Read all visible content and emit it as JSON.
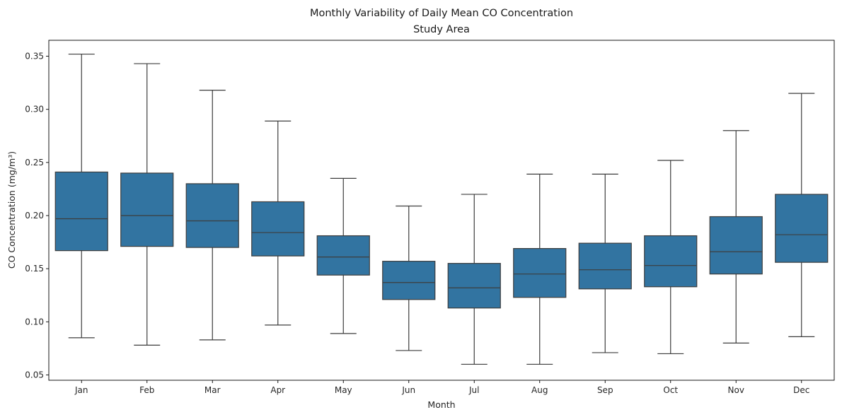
{
  "chart_data": {
    "type": "box",
    "title": "Monthly Variability of Daily Mean CO Concentration",
    "subtitle": "Study Area",
    "xlabel": "Month",
    "ylabel": "CO Concentration (mg/m³)",
    "ylim": [
      0.045,
      0.365
    ],
    "yticks": [
      0.05,
      0.1,
      0.15,
      0.2,
      0.25,
      0.3,
      0.35
    ],
    "ytick_labels": [
      "0.05",
      "0.10",
      "0.15",
      "0.20",
      "0.25",
      "0.30",
      "0.35"
    ],
    "grid": false,
    "box_color": "#3274a1",
    "line_color": "#3d3d3d",
    "categories": [
      "Jan",
      "Feb",
      "Mar",
      "Apr",
      "May",
      "Jun",
      "Jul",
      "Aug",
      "Sep",
      "Oct",
      "Nov",
      "Dec"
    ],
    "boxes": [
      {
        "min": 0.085,
        "q1": 0.167,
        "median": 0.197,
        "q3": 0.241,
        "max": 0.352
      },
      {
        "min": 0.078,
        "q1": 0.171,
        "median": 0.2,
        "q3": 0.24,
        "max": 0.343
      },
      {
        "min": 0.083,
        "q1": 0.17,
        "median": 0.195,
        "q3": 0.23,
        "max": 0.318
      },
      {
        "min": 0.097,
        "q1": 0.162,
        "median": 0.184,
        "q3": 0.213,
        "max": 0.289
      },
      {
        "min": 0.089,
        "q1": 0.144,
        "median": 0.161,
        "q3": 0.181,
        "max": 0.235
      },
      {
        "min": 0.073,
        "q1": 0.121,
        "median": 0.137,
        "q3": 0.157,
        "max": 0.209
      },
      {
        "min": 0.06,
        "q1": 0.113,
        "median": 0.132,
        "q3": 0.155,
        "max": 0.22
      },
      {
        "min": 0.06,
        "q1": 0.123,
        "median": 0.145,
        "q3": 0.169,
        "max": 0.239
      },
      {
        "min": 0.071,
        "q1": 0.131,
        "median": 0.149,
        "q3": 0.174,
        "max": 0.239
      },
      {
        "min": 0.07,
        "q1": 0.133,
        "median": 0.153,
        "q3": 0.181,
        "max": 0.252
      },
      {
        "min": 0.08,
        "q1": 0.145,
        "median": 0.166,
        "q3": 0.199,
        "max": 0.28
      },
      {
        "min": 0.086,
        "q1": 0.156,
        "median": 0.182,
        "q3": 0.22,
        "max": 0.315
      }
    ]
  }
}
